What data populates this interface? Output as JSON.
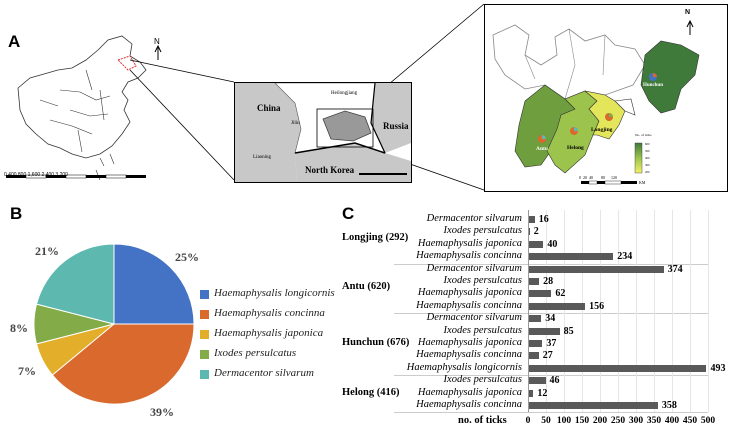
{
  "panels": {
    "a": "A",
    "b": "B",
    "c": "C"
  },
  "map_overview": {
    "scale": "0  400  800   1,600   2,400   3,200"
  },
  "map_middle": {
    "china": "China",
    "heilongjiang": "Heilongjiang",
    "jilin": "Jilin",
    "liaoning": "Liaoning",
    "russia": "Russia",
    "north_korea": "North Korea"
  },
  "map_detail": {
    "north": "N",
    "hunchun": "Hunchun",
    "longjing": "Longjing",
    "antu": "Antu",
    "helong": "Helong",
    "legend_title": "No. of ticks",
    "legend_values": [
      "600",
      "500",
      "400",
      "300",
      "200"
    ],
    "scale": "0  20  40        80      120",
    "scale_unit": "KM"
  },
  "pie_colors": [
    "#4472C4",
    "#D9692C",
    "#E3AE2A",
    "#83AB47",
    "#5DB8B0"
  ],
  "legend": [
    "Haemaphysalis longicornis",
    "Haemaphysalis concinna",
    "Haemaphysalis japonica",
    "Ixodes persulcatus",
    "Dermacentor silvarum"
  ],
  "pie_labels": [
    "25%",
    "39%",
    "7%",
    "8%",
    "21%"
  ],
  "chart_data": [
    {
      "type": "pie",
      "categories": [
        "Haemaphysalis longicornis",
        "Haemaphysalis concinna",
        "Haemaphysalis japonica",
        "Ixodes persulcatus",
        "Dermacentor silvarum"
      ],
      "values": [
        25,
        39,
        7,
        8,
        21
      ]
    },
    {
      "type": "bar",
      "orientation": "horizontal",
      "xlabel": "no. of ticks",
      "xlim": [
        0,
        500
      ],
      "xticks": [
        "0",
        "50",
        "100",
        "150",
        "200",
        "250",
        "300",
        "350",
        "400",
        "450",
        "500"
      ],
      "groups": [
        {
          "name": "Longjing (292)",
          "bars": [
            {
              "species": "Dermacentor silvarum",
              "value": 16
            },
            {
              "species": "Ixodes persulcatus",
              "value": 2
            },
            {
              "species": "Haemaphysalis japonica",
              "value": 40
            },
            {
              "species": "Haemaphysalis concinna",
              "value": 234
            }
          ]
        },
        {
          "name": "Antu (620)",
          "bars": [
            {
              "species": "Dermacentor silvarum",
              "value": 374
            },
            {
              "species": "Ixodes persulcatus",
              "value": 28
            },
            {
              "species": "Haemaphysalis japonica",
              "value": 62
            },
            {
              "species": "Haemaphysalis concinna",
              "value": 156
            }
          ]
        },
        {
          "name": "Hunchun (676)",
          "bars": [
            {
              "species": "Dermacentor silvarum",
              "value": 34
            },
            {
              "species": "Ixodes persulcatus",
              "value": 85
            },
            {
              "species": "Haemaphysalis japonica",
              "value": 37
            },
            {
              "species": "Haemaphysalis concinna",
              "value": 27
            },
            {
              "species": "Haemaphysalis longicornis",
              "value": 493
            }
          ]
        },
        {
          "name": "Helong (416)",
          "bars": [
            {
              "species": "Ixodes persulcatus",
              "value": 46
            },
            {
              "species": "Haemaphysalis japonica",
              "value": 12
            },
            {
              "species": "Haemaphysalis concinna",
              "value": 358
            }
          ]
        }
      ],
      "bar_color": "#595959"
    }
  ]
}
